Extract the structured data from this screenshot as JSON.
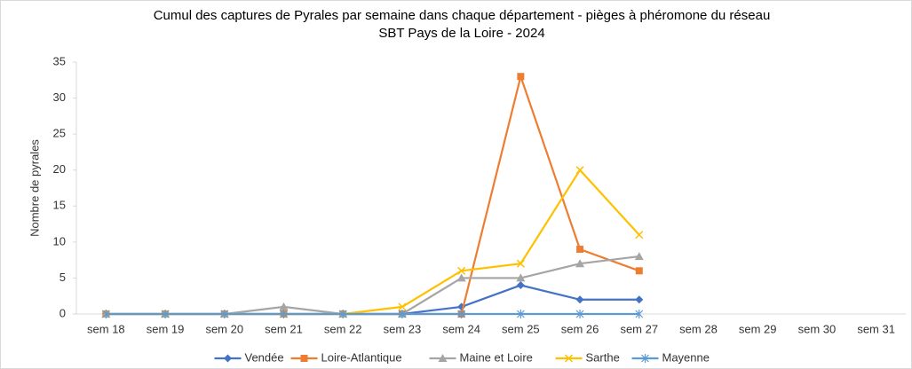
{
  "chart_data": {
    "type": "line",
    "title": [
      "Cumul des captures de Pyrales par semaine dans chaque département - pièges à phéromone du réseau",
      "SBT Pays de la Loire - 2024"
    ],
    "y_label": "Nombre de pyrales",
    "categories": [
      "sem 18",
      "sem 19",
      "sem 20",
      "sem 21",
      "sem 22",
      "sem 23",
      "sem 24",
      "sem 25",
      "sem 26",
      "sem 27",
      "sem 28",
      "sem 29",
      "sem 30",
      "sem 31"
    ],
    "series": [
      {
        "name": "Vendée",
        "color": "#4472c4",
        "marker": "diamond",
        "values": [
          0,
          0,
          0,
          0,
          0,
          0,
          1,
          4,
          2,
          2,
          null,
          null,
          null,
          null
        ]
      },
      {
        "name": "Loire-Atlantique",
        "color": "#ed7d31",
        "marker": "square",
        "values": [
          0,
          0,
          0,
          0,
          0,
          0,
          0,
          33,
          9,
          6,
          null,
          null,
          null,
          null
        ]
      },
      {
        "name": "Maine et Loire",
        "color": "#a5a5a5",
        "marker": "triangle",
        "values": [
          0,
          0,
          0,
          1,
          0,
          0,
          5,
          5,
          7,
          8,
          null,
          null,
          null,
          null
        ]
      },
      {
        "name": "Sarthe",
        "color": "#ffc000",
        "marker": "x",
        "values": [
          0,
          0,
          0,
          0,
          0,
          1,
          6,
          7,
          20,
          11,
          null,
          null,
          null,
          null
        ]
      },
      {
        "name": "Mayenne",
        "color": "#5b9bd5",
        "marker": "star",
        "values": [
          0,
          0,
          0,
          0,
          0,
          0,
          0,
          0,
          0,
          0,
          null,
          null,
          null,
          null
        ]
      }
    ],
    "ylim": [
      0,
      35
    ],
    "yticks": [
      0,
      5,
      10,
      15,
      20,
      25,
      30,
      35
    ],
    "grid": false,
    "legend": "bottom"
  }
}
